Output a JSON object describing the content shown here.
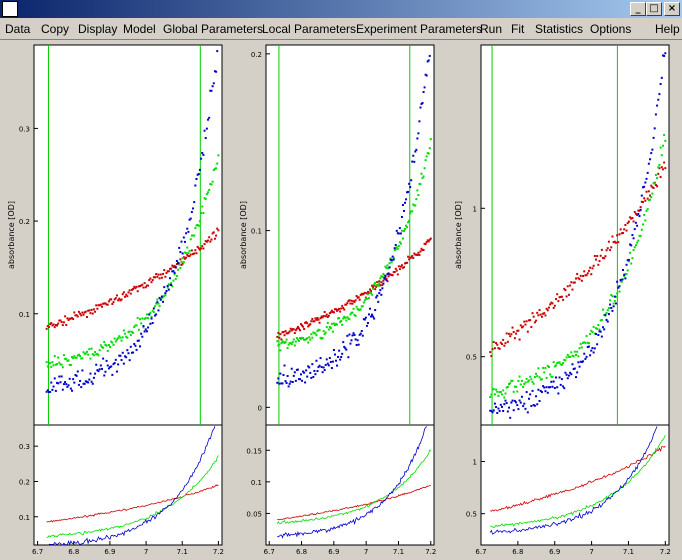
{
  "menu": [
    "Data",
    "Copy",
    "Display",
    "Model",
    "Global Parameters",
    "Local Parameters",
    "Experiment Parameters",
    "Run",
    "Fit",
    "Statistics",
    "Options",
    "Help"
  ],
  "window_buttons": {
    "minimize": "_",
    "maximize": "□",
    "close": "×"
  },
  "colors": {
    "red": "#cc0000",
    "green": "#00dd00",
    "blue": "#0000cc",
    "limit": "#00cc00",
    "panel": "#ffffff"
  },
  "ylabel": "absorbance [OD]",
  "chart_data": [
    {
      "type": "scatter",
      "ylabel": "absorbance [OD]",
      "xlim": [
        6.69,
        7.21
      ],
      "ylim": [
        -0.02,
        0.39
      ],
      "yticks": [
        0.1,
        0.2,
        0.3
      ],
      "limits": [
        6.73,
        7.15
      ],
      "series": [
        {
          "color": "red",
          "start": 0.085,
          "end": 0.19
        },
        {
          "color": "green",
          "start": 0.045,
          "end": 0.27
        },
        {
          "color": "blue",
          "start": 0.02,
          "end": 0.39
        }
      ],
      "residual": {
        "xticks": [
          6.7,
          6.8,
          6.9,
          7,
          7.1,
          7.2
        ],
        "yticks": [
          0.1,
          0.2,
          0.3
        ],
        "ylim": [
          0.02,
          0.36
        ]
      }
    },
    {
      "type": "scatter",
      "ylabel": "absorbance [OD]",
      "xlim": [
        6.69,
        7.21
      ],
      "ylim": [
        -0.01,
        0.205
      ],
      "yticks": [
        0,
        0.1,
        0.2
      ],
      "limits": [
        6.73,
        7.135
      ],
      "series": [
        {
          "color": "red",
          "start": 0.04,
          "end": 0.095
        },
        {
          "color": "green",
          "start": 0.035,
          "end": 0.15
        },
        {
          "color": "blue",
          "start": 0.015,
          "end": 0.21
        }
      ],
      "residual": {
        "xticks": [
          6.7,
          6.8,
          6.9,
          7,
          7.1,
          7.2
        ],
        "yticks": [
          0.05,
          0.1,
          0.15
        ],
        "ylim": [
          0,
          0.19
        ]
      }
    },
    {
      "type": "scatter",
      "ylabel": "absorbance [OD]",
      "xlim": [
        6.7,
        7.21
      ],
      "ylim": [
        0.27,
        1.55
      ],
      "yticks": [
        0.5,
        1
      ],
      "limits": [
        6.73,
        7.07
      ],
      "series": [
        {
          "color": "red",
          "start": 0.52,
          "end": 1.15
        },
        {
          "color": "green",
          "start": 0.38,
          "end": 1.25
        },
        {
          "color": "blue",
          "start": 0.32,
          "end": 1.55
        }
      ],
      "residual": {
        "xticks": [
          6.7,
          6.8,
          6.9,
          7,
          7.1,
          7.2
        ],
        "yticks": [
          0.5,
          1
        ],
        "ylim": [
          0.2,
          1.35
        ]
      }
    }
  ]
}
